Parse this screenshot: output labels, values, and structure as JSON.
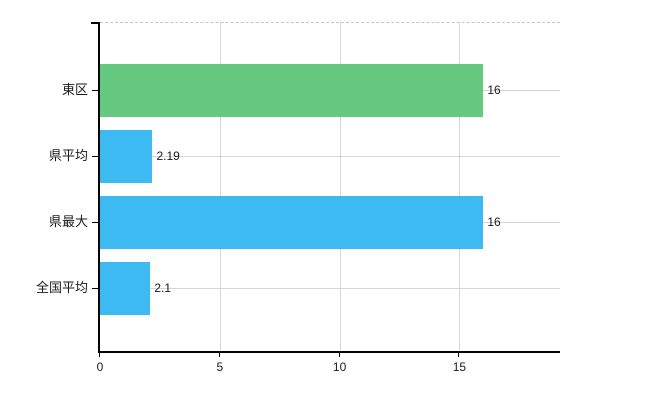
{
  "chart_data": {
    "type": "bar",
    "orientation": "horizontal",
    "title": "",
    "xlabel": "",
    "ylabel": "",
    "categories": [
      "東区",
      "県平均",
      "県最大",
      "全国平均"
    ],
    "values": [
      16,
      2.19,
      16,
      2.1
    ],
    "value_labels": [
      "16",
      "2.19",
      "16",
      "2.1"
    ],
    "bar_colors": [
      "#66c980",
      "#3ebaf2",
      "#3ebaf2",
      "#3ebaf2"
    ],
    "xlim": [
      0,
      19.2
    ],
    "xticks": [
      0,
      5,
      10,
      15
    ],
    "xtick_labels": [
      "0",
      "5",
      "10",
      "15"
    ],
    "grid": true,
    "legend": false
  },
  "colors": {
    "bar_green": "#66c980",
    "bar_blue": "#3ebaf2",
    "gridline": "#d6d6d6",
    "plot_top_border": "#c6c6c6",
    "axis": "#000000",
    "text": "#1a1a1a",
    "background": "#ffffff"
  }
}
